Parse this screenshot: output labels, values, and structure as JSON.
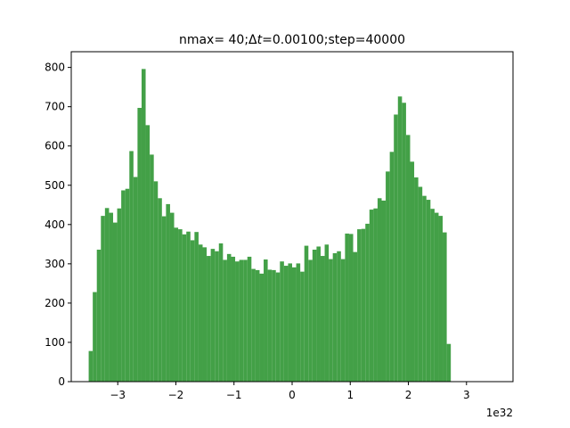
{
  "chart_data": {
    "type": "bar",
    "title_parts": [
      {
        "text": "nmax= 40;Δ",
        "italic": false
      },
      {
        "text": "t",
        "italic": true
      },
      {
        "text": "=0.00100;step=40000",
        "italic": false
      }
    ],
    "title": "nmax= 40;Δt=0.00100;step=40000",
    "xlabel": "",
    "ylabel": "",
    "x_offset_label": "1e32",
    "xlim": [
      -3.8,
      3.8
    ],
    "ylim": [
      0,
      840
    ],
    "bar_color": "#43a047",
    "grid": false,
    "xticks": [
      -3,
      -2,
      -1,
      0,
      1,
      2,
      3
    ],
    "xtick_labels": [
      "−3",
      "−2",
      "−1",
      "0",
      "1",
      "2",
      "3"
    ],
    "yticks": [
      0,
      100,
      200,
      300,
      400,
      500,
      600,
      700,
      800
    ],
    "ytick_labels": [
      "0",
      "100",
      "200",
      "300",
      "400",
      "500",
      "600",
      "700",
      "800"
    ],
    "bin_start": -3.5,
    "bin_width": 0.07,
    "values": [
      78,
      228,
      336,
      422,
      442,
      430,
      405,
      441,
      487,
      491,
      587,
      521,
      697,
      796,
      653,
      578,
      510,
      467,
      421,
      452,
      430,
      392,
      388,
      375,
      382,
      360,
      381,
      349,
      342,
      320,
      338,
      332,
      352,
      310,
      325,
      318,
      306,
      310,
      310,
      318,
      287,
      284,
      275,
      311,
      285,
      284,
      278,
      306,
      295,
      301,
      291,
      301,
      280,
      346,
      310,
      336,
      344,
      320,
      349,
      312,
      327,
      332,
      312,
      377,
      376,
      330,
      388,
      389,
      402,
      438,
      441,
      467,
      461,
      535,
      585,
      680,
      726,
      710,
      628,
      560,
      520,
      496,
      473,
      463,
      440,
      430,
      422,
      380,
      96
    ]
  }
}
